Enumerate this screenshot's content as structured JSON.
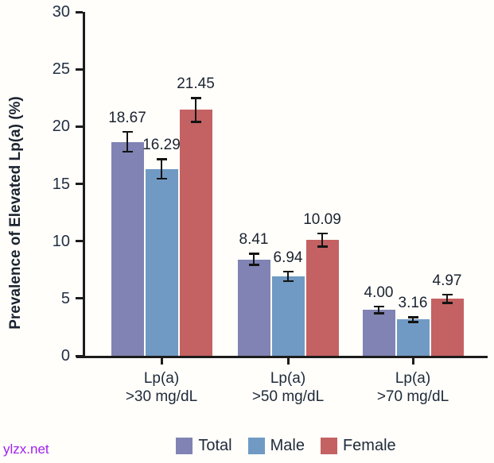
{
  "watermark": {
    "text": "ylzx.net",
    "color": "#a020f0"
  },
  "chart_data": {
    "type": "bar",
    "title": "",
    "xlabel": "",
    "ylabel": "Prevalence of Elevated Lp(a) (%)",
    "ylim": [
      0,
      30
    ],
    "yticks": [
      0,
      5,
      10,
      15,
      20,
      25,
      30
    ],
    "grid": false,
    "legend_position": "bottom",
    "categories": [
      [
        "Lp(a)",
        ">30 mg/dL"
      ],
      [
        "Lp(a)",
        ">50 mg/dL"
      ],
      [
        "Lp(a)",
        ">70 mg/dL"
      ]
    ],
    "series": [
      {
        "name": "Total",
        "color": "#8083b3",
        "values": [
          18.67,
          8.41,
          4.0
        ],
        "value_labels": [
          "18.67",
          "8.41",
          "4.00"
        ],
        "errors": [
          0.95,
          0.58,
          0.37
        ]
      },
      {
        "name": "Male",
        "color": "#709ac4",
        "values": [
          16.29,
          6.94,
          3.16
        ],
        "value_labels": [
          "16.29",
          "6.94",
          "3.16"
        ],
        "errors": [
          0.93,
          0.5,
          0.3
        ]
      },
      {
        "name": "Female",
        "color": "#c46162",
        "values": [
          21.45,
          10.09,
          4.97
        ],
        "value_labels": [
          "21.45",
          "10.09",
          "4.97"
        ],
        "errors": [
          1.12,
          0.65,
          0.45
        ]
      }
    ]
  }
}
